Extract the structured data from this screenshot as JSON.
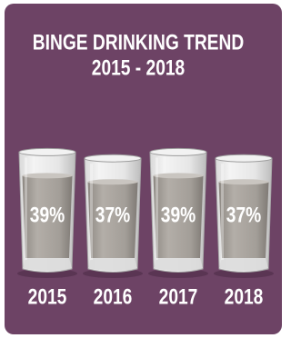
{
  "chart_data": {
    "type": "bar",
    "title": "BINGE DRINKING TREND",
    "subtitle": "2015 - 2018",
    "categories": [
      "2015",
      "2016",
      "2017",
      "2018"
    ],
    "values": [
      39,
      37,
      39,
      37
    ],
    "value_labels": [
      "39%",
      "37%",
      "39%",
      "37%"
    ],
    "color": "#a09a94"
  }
}
